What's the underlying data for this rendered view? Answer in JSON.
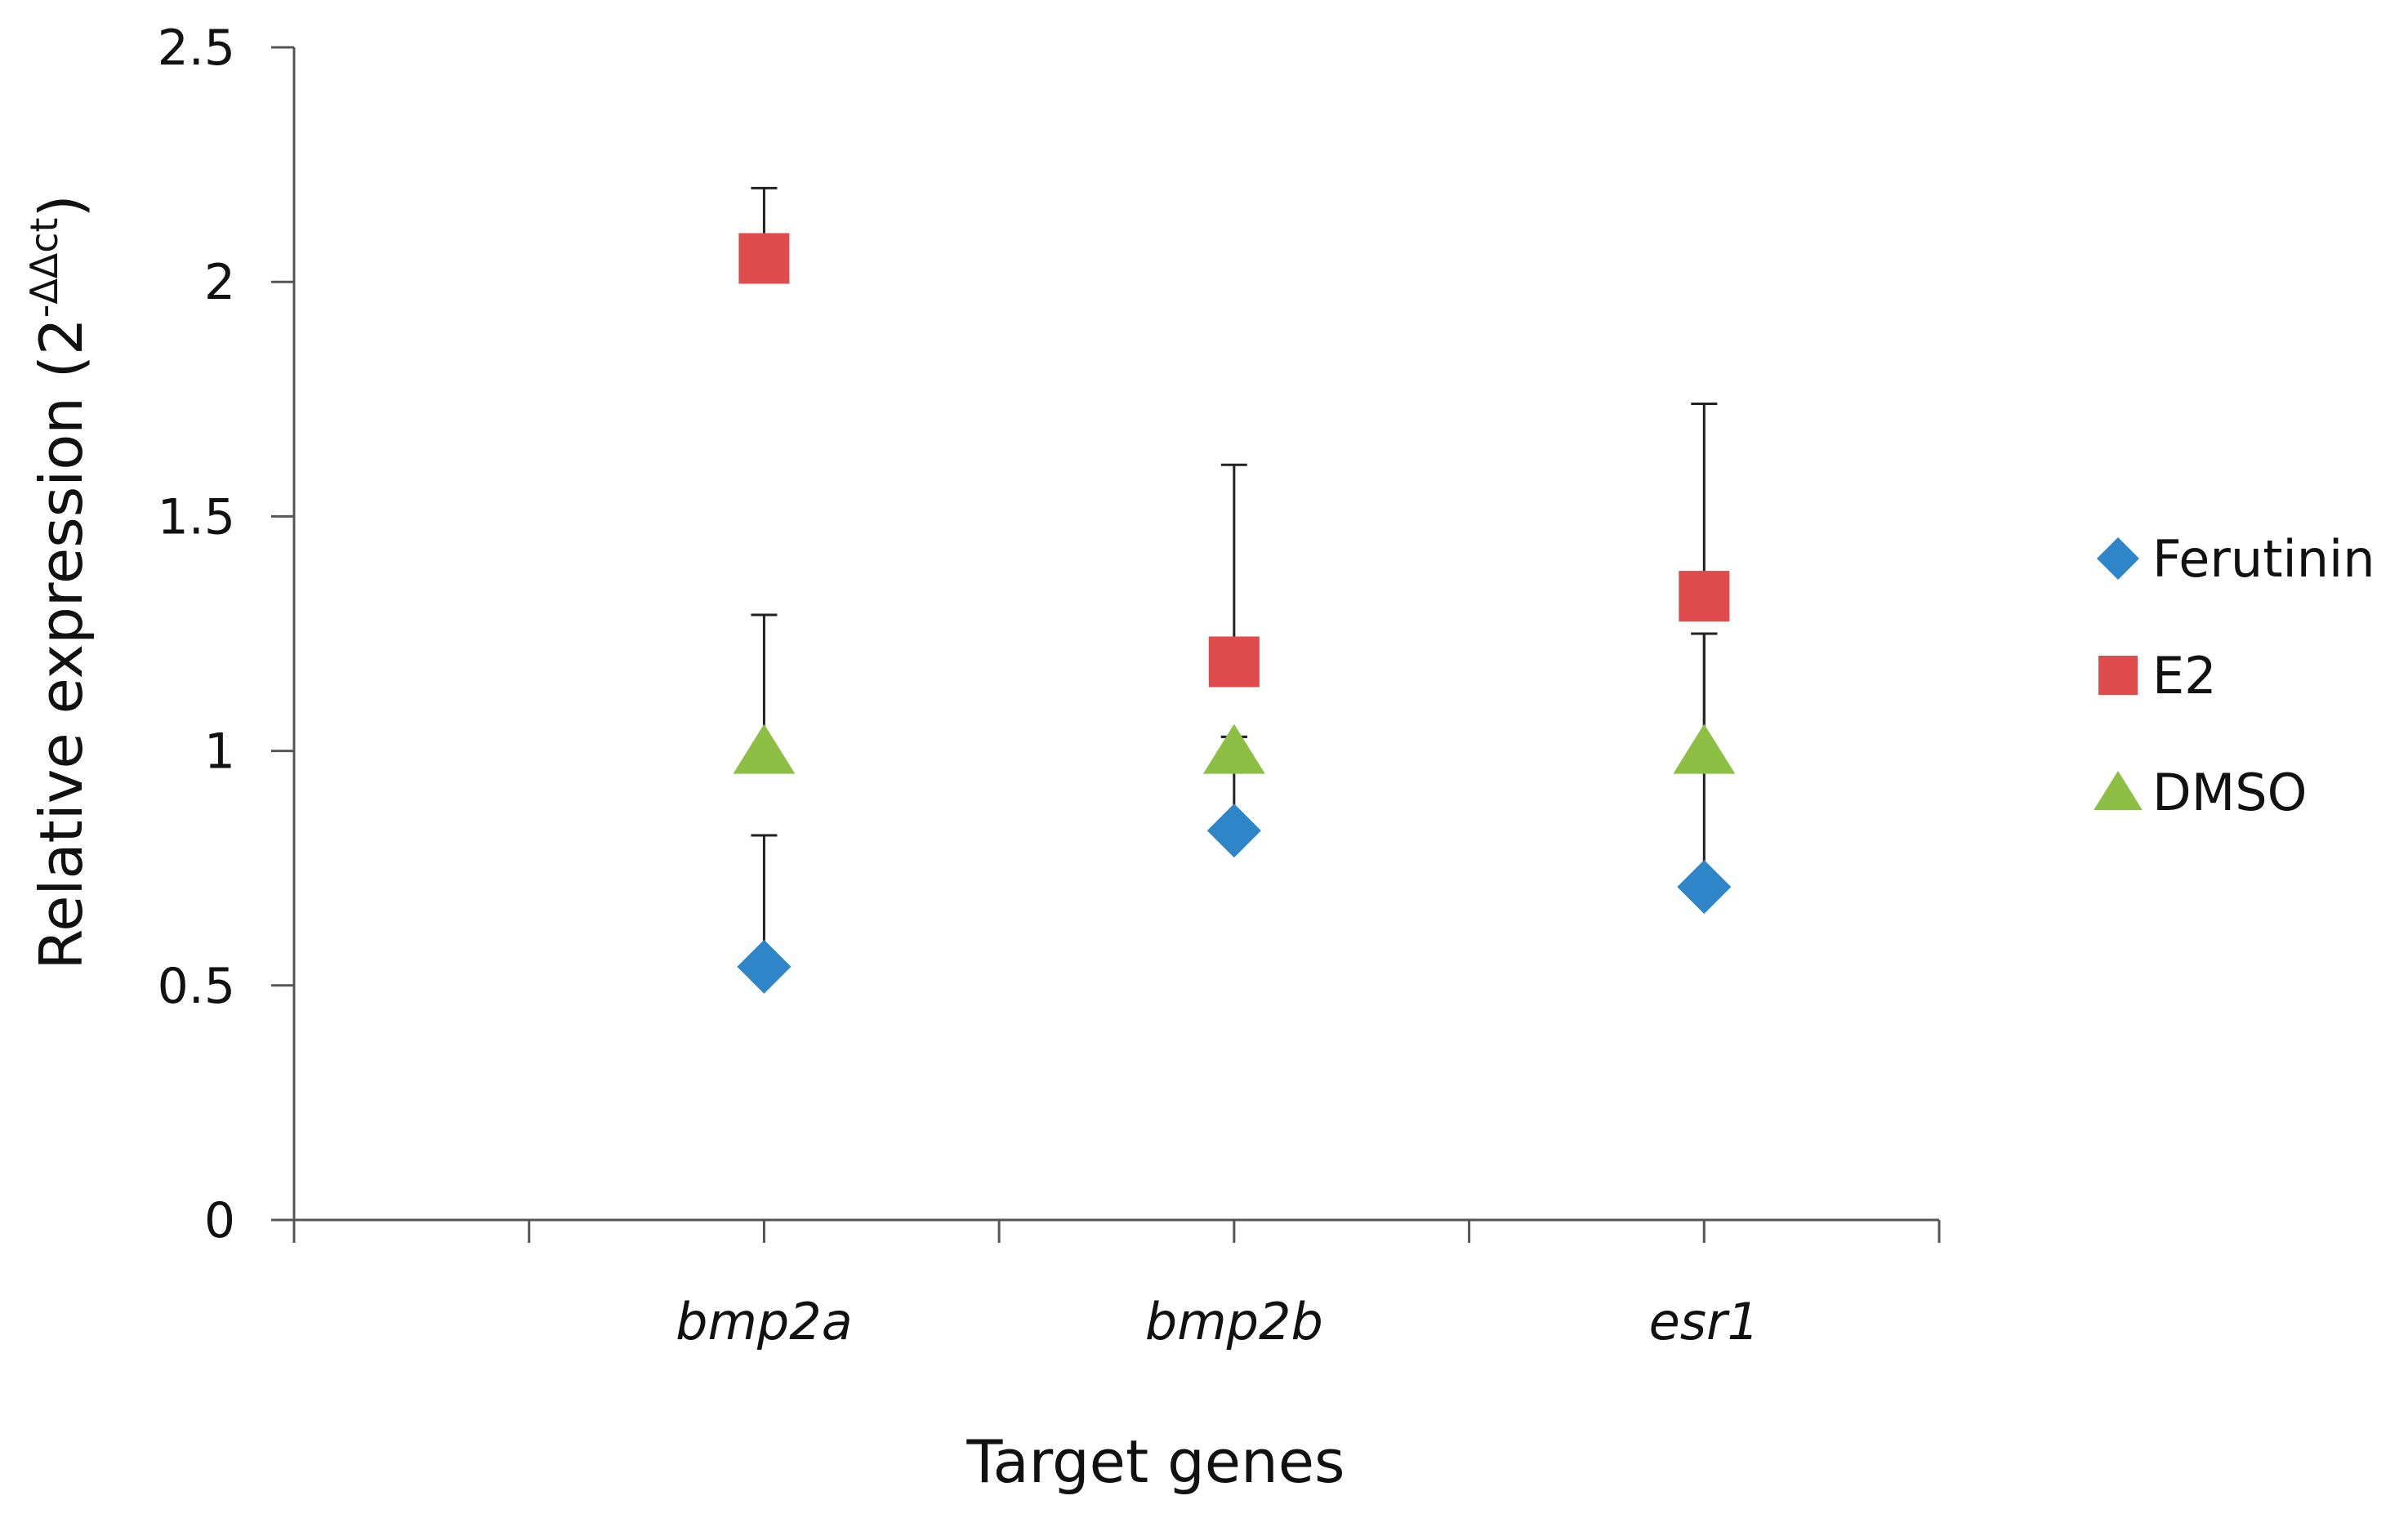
{
  "chart_data": {
    "type": "scatter",
    "title": "",
    "xlabel": "Target genes",
    "ylabel": "Relative expression (2",
    "ylabel_superscript": "-ΔΔct",
    "ylabel_close": ")",
    "ylim": [
      0,
      2.5
    ],
    "yticks": [
      "0",
      "0.5",
      "1",
      "1.5",
      "2",
      "2.5"
    ],
    "categories": [
      "bmp2a",
      "bmp2b",
      "esr1"
    ],
    "grid": false,
    "legend_position": "right",
    "series": [
      {
        "name": "Ferutinin",
        "marker": "diamond",
        "color": "#2E86C8",
        "values": [
          0.54,
          0.83,
          0.71
        ],
        "error_upper": [
          0.82,
          1.03,
          1.25
        ]
      },
      {
        "name": "E2",
        "marker": "square",
        "color": "#E04B4B",
        "values": [
          2.05,
          1.19,
          1.33
        ],
        "error_upper": [
          2.2,
          1.61,
          1.74
        ]
      },
      {
        "name": "DMSO",
        "marker": "triangle",
        "color": "#8DBF45",
        "values": [
          1.0,
          1.0,
          1.0
        ],
        "error_upper": [
          1.29,
          1.03,
          1.25
        ]
      }
    ]
  }
}
